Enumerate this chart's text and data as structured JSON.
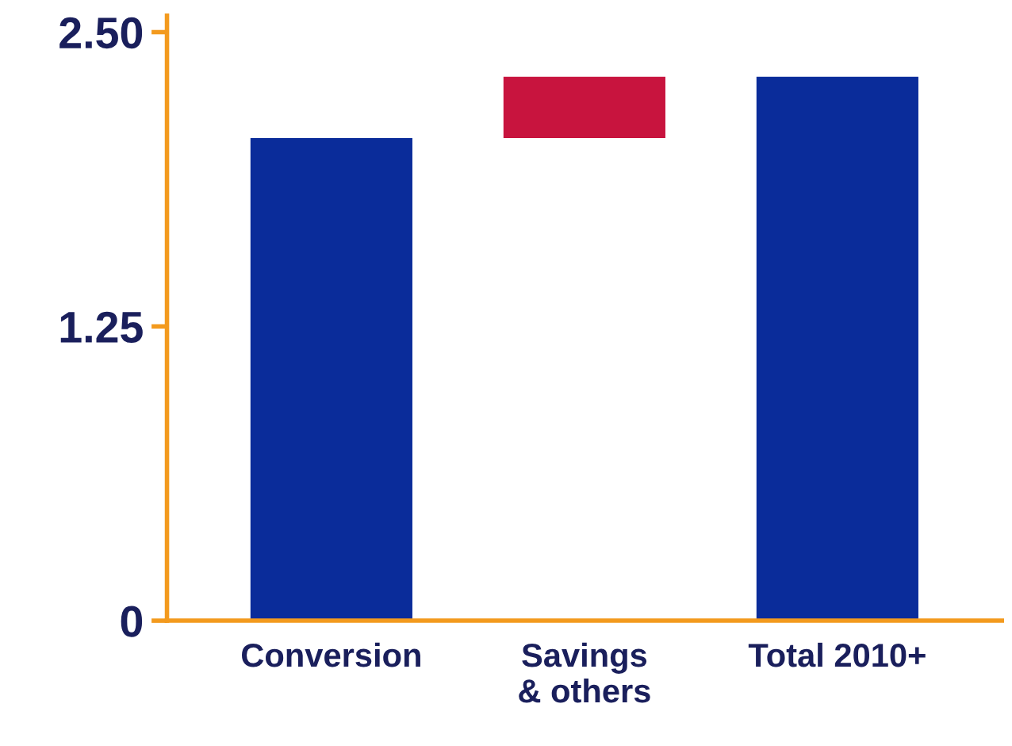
{
  "chart_data": {
    "type": "bar",
    "categories": [
      "Conversion",
      "Savings\n& others",
      "Total 2010+"
    ],
    "values": [
      2.05,
      0.26,
      2.31
    ],
    "base": [
      0,
      2.05,
      0
    ],
    "colors": [
      "#0a2c9a",
      "#c8143e",
      "#0a2c9a"
    ],
    "ylim": [
      0,
      2.57
    ],
    "yticks": [
      0,
      1.25,
      {
        "value": 2.5,
        "label": "2.50"
      }
    ],
    "grid": false,
    "legend": false
  }
}
